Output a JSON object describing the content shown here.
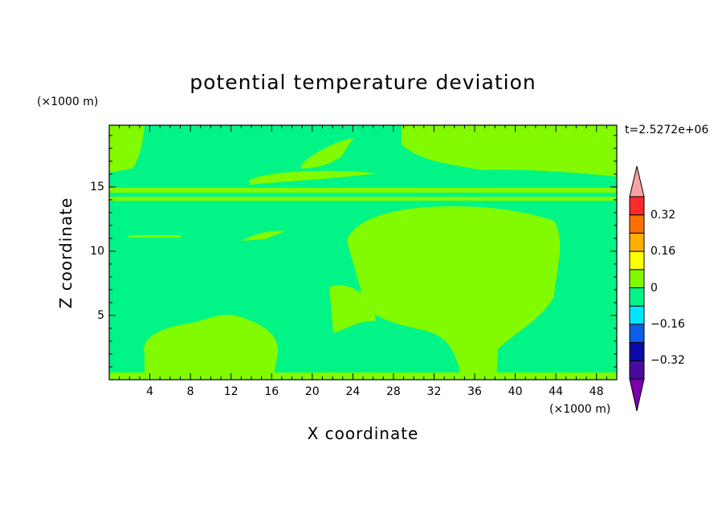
{
  "chart_data": {
    "type": "heatmap",
    "title": "potential temperature deviation",
    "xlabel": "X coordinate",
    "ylabel": "Z coordinate",
    "x_unit": "(×1000 m)",
    "y_unit": "(×1000 m)",
    "time_label": "t=2.5272e+06",
    "xlim": [
      0,
      50
    ],
    "ylim": [
      0,
      19.8
    ],
    "x_ticks": [
      "4",
      "8",
      "12",
      "16",
      "20",
      "24",
      "28",
      "32",
      "36",
      "40",
      "44",
      "48"
    ],
    "y_ticks": [
      "5",
      "10",
      "15"
    ],
    "colorbar": {
      "levels": [
        -0.4,
        -0.32,
        -0.24,
        -0.16,
        -0.08,
        0,
        0.08,
        0.16,
        0.24,
        0.32,
        0.4
      ],
      "labels": [
        "0.32",
        "0.16",
        "0",
        "−0.16",
        "−0.32"
      ],
      "colors": [
        "#7b00ab",
        "#4a0aa0",
        "#0a0aa8",
        "#0a5fe6",
        "#00e6ff",
        "#00f586",
        "#82fa00",
        "#ffff00",
        "#ffb000",
        "#ff7000",
        "#ff2a2a",
        "#f8a2a2"
      ]
    },
    "background_value_color": "#00f586",
    "positive_region_color": "#82fa00",
    "grid": false
  }
}
